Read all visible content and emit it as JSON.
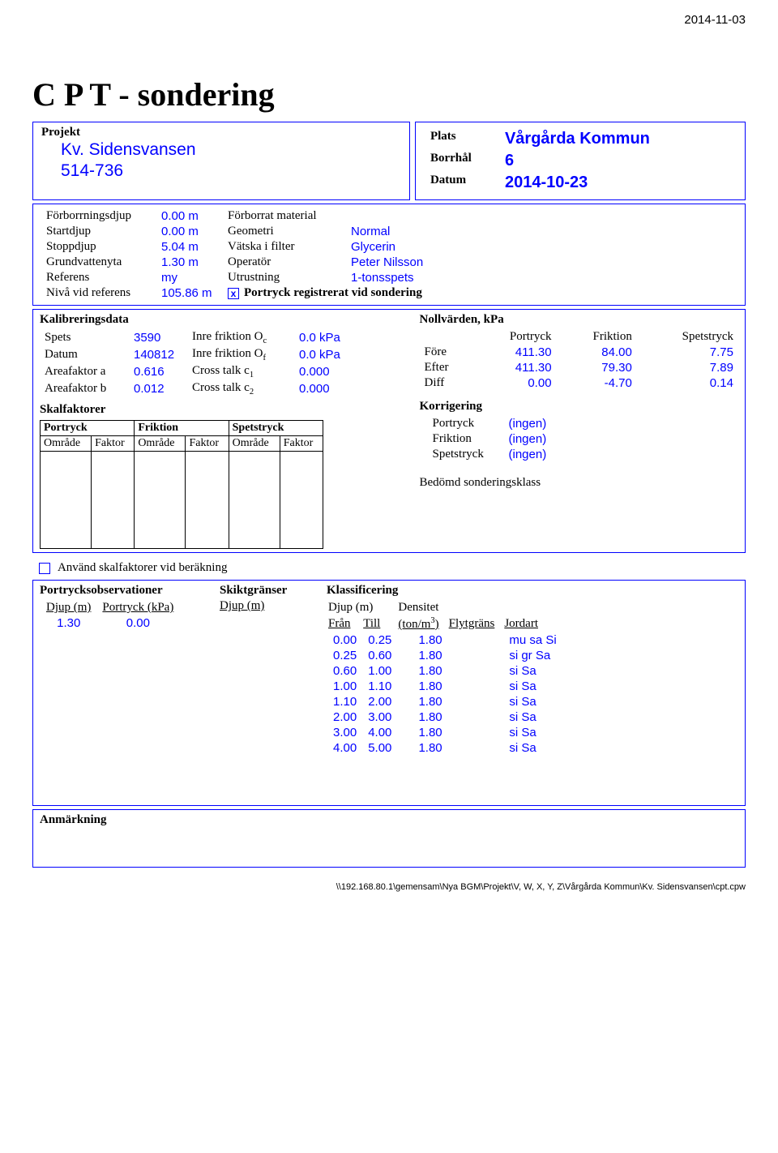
{
  "page_date": "2014-11-03",
  "title": "C P T - sondering",
  "project": {
    "label": "Projekt",
    "name": "Kv. Sidensvansen",
    "number": "514-736"
  },
  "plats": {
    "plats_label": "Plats",
    "plats_value": "Vårgårda Kommun",
    "borrhal_label": "Borrhål",
    "borrhal_value": "6",
    "datum_label": "Datum",
    "datum_value": "2014-10-23"
  },
  "meta": {
    "rows": [
      {
        "k1": "Förborrningsdjup",
        "v1": "0.00 m",
        "k2": "Förborrat material",
        "v2": ""
      },
      {
        "k1": "Startdjup",
        "v1": "0.00 m",
        "k2": "Geometri",
        "v2": "Normal"
      },
      {
        "k1": "Stoppdjup",
        "v1": "5.04 m",
        "k2": "Vätska i filter",
        "v2": "Glycerin"
      },
      {
        "k1": "Grundvattenyta",
        "v1": "1.30 m",
        "k2": "Operatör",
        "v2": "Peter Nilsson"
      },
      {
        "k1": "Referens",
        "v1": "my",
        "k2": "Utrustning",
        "v2": "1-tonsspets"
      },
      {
        "k1": "Nivå vid referens",
        "v1": "105.86 m",
        "k2": "",
        "v2": ""
      }
    ],
    "checkbox_text": "Portryck registrerat vid sondering",
    "checkbox_mark": "x"
  },
  "kalibr": {
    "title": "Kalibreringsdata",
    "rows": [
      {
        "k1": "Spets",
        "v1": "3590",
        "k2": "Inre friktion O",
        "sub": "c",
        "v2": "0.0 kPa"
      },
      {
        "k1": "Datum",
        "v1": "140812",
        "k2": "Inre friktion O",
        "sub": "f",
        "v2": "0.0 kPa"
      },
      {
        "k1": "Areafaktor a",
        "v1": "0.616",
        "k2": "Cross talk c",
        "sub": "1",
        "v2": "0.000"
      },
      {
        "k1": "Areafaktor b",
        "v1": "0.012",
        "k2": "Cross talk c",
        "sub": "2",
        "v2": "0.000"
      }
    ]
  },
  "skal": {
    "title": "Skalfaktorer",
    "cols": [
      "Portryck",
      "Friktion",
      "Spetstryck"
    ],
    "sub": [
      "Område",
      "Faktor",
      "Område",
      "Faktor",
      "Område",
      "Faktor"
    ]
  },
  "noll": {
    "title": "Nollvärden, kPa",
    "cols": [
      "",
      "Portryck",
      "Friktion",
      "Spetstryck"
    ],
    "rows": [
      {
        "k": "Före",
        "v": [
          "411.30",
          "84.00",
          "7.75"
        ]
      },
      {
        "k": "Efter",
        "v": [
          "411.30",
          "79.30",
          "7.89"
        ]
      },
      {
        "k": "Diff",
        "v": [
          "0.00",
          "-4.70",
          "0.14"
        ]
      }
    ]
  },
  "korr": {
    "title": "Korrigering",
    "rows": [
      {
        "k": "Portryck",
        "v": "(ingen)"
      },
      {
        "k": "Friktion",
        "v": "(ingen)"
      },
      {
        "k": "Spetstryck",
        "v": "(ingen)"
      }
    ]
  },
  "bedomd": "Bedömd sonderingsklass",
  "anvand_label": "Använd skalfaktorer vid beräkning",
  "portrycksobs": {
    "title": "Portrycksobservationer",
    "h1": "Djup  (m)",
    "h2": "Portryck (kPa)",
    "rows": [
      {
        "d": "1.30",
        "p": "0.00"
      }
    ]
  },
  "skikt": {
    "title": "Skiktgränser",
    "h": "Djup  (m)"
  },
  "klass": {
    "title": "Klassificering",
    "headers": {
      "djup": "Djup  (m)",
      "fran": "Från",
      "till": "Till",
      "dens": "Densitet",
      "densu": "(ton/m",
      "flyt": "Flytgräns",
      "jord": "Jordart"
    },
    "rows": [
      {
        "f": "0.00",
        "t": "0.25",
        "d": "1.80",
        "j": "mu sa Si"
      },
      {
        "f": "0.25",
        "t": "0.60",
        "d": "1.80",
        "j": "si gr Sa"
      },
      {
        "f": "0.60",
        "t": "1.00",
        "d": "1.80",
        "j": "si Sa"
      },
      {
        "f": "1.00",
        "t": "1.10",
        "d": "1.80",
        "j": "si Sa"
      },
      {
        "f": "1.10",
        "t": "2.00",
        "d": "1.80",
        "j": "si Sa"
      },
      {
        "f": "2.00",
        "t": "3.00",
        "d": "1.80",
        "j": "si Sa"
      },
      {
        "f": "3.00",
        "t": "4.00",
        "d": "1.80",
        "j": "si Sa"
      },
      {
        "f": "4.00",
        "t": "5.00",
        "d": "1.80",
        "j": "si Sa"
      }
    ]
  },
  "anm_label": "Anmärkning",
  "footer": "\\\\192.168.80.1\\gemensam\\Nya BGM\\Projekt\\V, W, X, Y, Z\\Vårgårda Kommun\\Kv. Sidensvansen\\cpt.cpw"
}
